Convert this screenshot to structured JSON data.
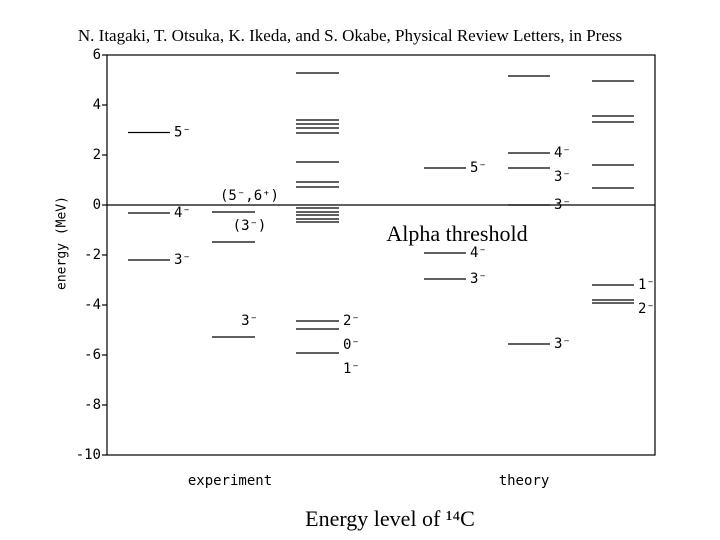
{
  "chart_data": {
    "type": "level",
    "title": "N. Itagaki, T. Otsuka, K. Ikeda, and S. Okabe,  Physical Review Letters, in Press",
    "caption": "Energy level of ¹⁴C",
    "y_label": "energy (MeV)",
    "ylim": [
      -10,
      6
    ],
    "yticks": [
      -10,
      -8,
      -6,
      -4,
      -2,
      0,
      2,
      4,
      6
    ],
    "threshold": {
      "value": 0,
      "label": "Alpha threshold"
    },
    "group_labels": [
      "experiment",
      "theory"
    ],
    "series": [
      {
        "values": [
          2.9,
          -0.32,
          -2.2
        ],
        "labels": [
          "5⁻",
          "4⁻",
          "3⁻"
        ]
      },
      {
        "values": [
          -0.28,
          -1.48,
          -5.28
        ],
        "labels": [
          "(5⁻,6⁺)",
          "(3⁻)",
          "3⁻"
        ]
      },
      {
        "values": [
          5.28,
          3.4,
          3.24,
          3.08,
          2.88,
          1.72,
          0.92,
          0.72,
          -0.12,
          -0.28,
          -0.4,
          -0.56,
          -0.68,
          -4.64,
          -4.96,
          -5.92
        ],
        "labels": [
          null,
          null,
          null,
          null,
          null,
          null,
          null,
          null,
          null,
          null,
          null,
          null,
          null,
          "2⁻",
          "0⁻",
          "1⁻"
        ]
      },
      {
        "values": [
          1.48,
          -1.92,
          -2.96
        ],
        "labels": [
          "5⁻",
          "4⁻",
          "3⁻"
        ]
      },
      {
        "values": [
          5.16,
          2.08,
          1.48,
          0,
          -5.56
        ],
        "labels": [
          null,
          "4⁻",
          "3⁻",
          "3⁻",
          "3⁻"
        ]
      },
      {
        "values": [
          4.96,
          3.56,
          3.32,
          1.6,
          0.68,
          -3.2,
          -3.8,
          -3.92
        ],
        "labels": [
          null,
          null,
          null,
          null,
          null,
          "1⁻",
          null,
          "2⁻"
        ]
      }
    ]
  }
}
